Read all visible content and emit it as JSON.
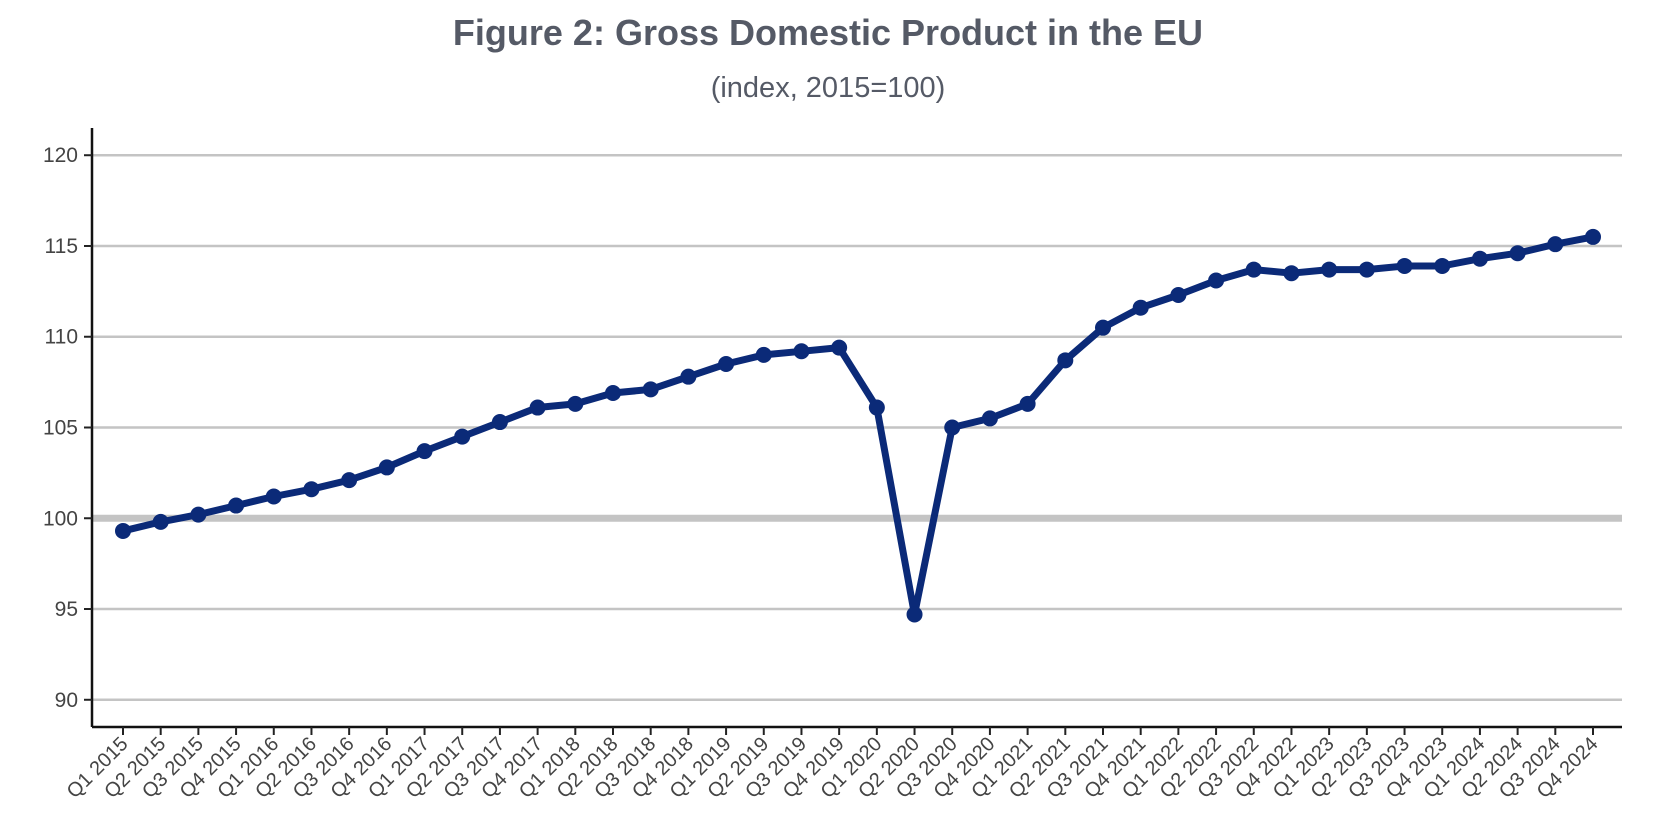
{
  "chart_data": {
    "type": "line",
    "title": "Figure 2: Gross Domestic Product in the EU",
    "subtitle": "(index, 2015=100)",
    "xlabel": "",
    "ylabel": "",
    "ylim": [
      88.5,
      121.5
    ],
    "yticks": [
      90,
      95,
      100,
      105,
      110,
      115,
      120
    ],
    "reference_line": 100,
    "grid": "horizontal",
    "line_color": "#0b2a78",
    "categories": [
      "Q1 2015",
      "Q2 2015",
      "Q3 2015",
      "Q4 2015",
      "Q1 2016",
      "Q2 2016",
      "Q3 2016",
      "Q4 2016",
      "Q1 2017",
      "Q2 2017",
      "Q3 2017",
      "Q4 2017",
      "Q1 2018",
      "Q2 2018",
      "Q3 2018",
      "Q4 2018",
      "Q1 2019",
      "Q2 2019",
      "Q3 2019",
      "Q4 2019",
      "Q1 2020",
      "Q2 2020",
      "Q3 2020",
      "Q4 2020",
      "Q1 2021",
      "Q2 2021",
      "Q3 2021",
      "Q4 2021",
      "Q1 2022",
      "Q2 2022",
      "Q3 2022",
      "Q4 2022",
      "Q1 2023",
      "Q2 2023",
      "Q3 2023",
      "Q4 2023",
      "Q1 2024",
      "Q2 2024",
      "Q3 2024",
      "Q4 2024"
    ],
    "values": [
      99.3,
      99.8,
      100.2,
      100.7,
      101.2,
      101.6,
      102.1,
      102.8,
      103.7,
      104.5,
      105.3,
      106.1,
      106.3,
      106.9,
      107.1,
      107.8,
      108.5,
      109.0,
      109.2,
      109.4,
      106.1,
      94.7,
      105.0,
      105.5,
      106.3,
      108.7,
      110.5,
      111.6,
      112.3,
      113.1,
      113.7,
      113.5,
      113.7,
      113.7,
      113.9,
      113.9,
      114.3,
      114.6,
      115.1,
      115.5
    ]
  }
}
